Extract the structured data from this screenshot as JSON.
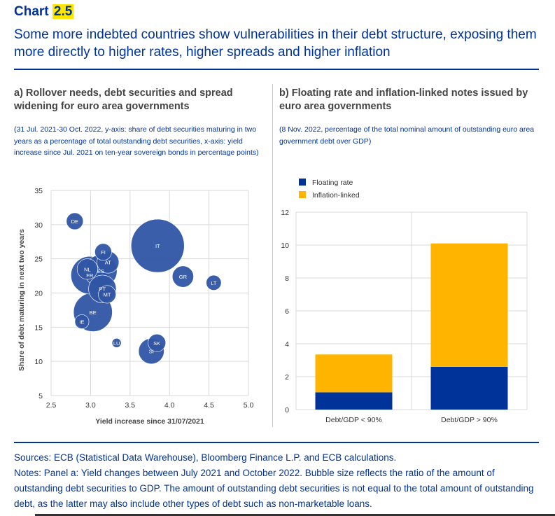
{
  "header": {
    "chart_label": "Chart",
    "chart_number": "2.5",
    "title": "Some more indebted countries show vulnerabilities in their debt structure, exposing them more directly to higher rates, higher spreads and higher inflation"
  },
  "panel_a": {
    "title": "a) Rollover needs, debt securities and spread widening for euro area governments",
    "note": "(31 Jul. 2021-30 Oct. 2022, y-axis: share of debt securities maturing in two years as a percentage of total outstanding debt securities, x-axis: yield increase since Jul. 2021 on ten-year sovereign bonds in percentage points)"
  },
  "panel_b": {
    "title": "b) Floating rate and inflation-linked notes issued by euro area governments",
    "note": "(8 Nov. 2022, percentage of the total nominal amount of outstanding euro area government debt over GDP)"
  },
  "chart_data": [
    {
      "type": "scatter",
      "xlabel": "Yield increase since 31/07/2021",
      "ylabel": "Share of debt maturing in next two years",
      "xlim": [
        2.5,
        5.0
      ],
      "ylim": [
        5,
        35
      ],
      "x_ticks": [
        "2.5",
        "3.0",
        "3.5",
        "4.0",
        "4.5",
        "5.0"
      ],
      "y_ticks": [
        "5",
        "10",
        "15",
        "20",
        "25",
        "30",
        "35"
      ],
      "grid": true,
      "bubble_color": "#2f55a4",
      "points": [
        {
          "label": "DE",
          "x": 2.8,
          "y": 30.5,
          "size": 1.0
        },
        {
          "label": "FI",
          "x": 3.16,
          "y": 26.0,
          "size": 1.0
        },
        {
          "label": "AT",
          "x": 3.22,
          "y": 24.5,
          "size": 1.7
        },
        {
          "label": "NL",
          "x": 2.96,
          "y": 23.5,
          "size": 1.5
        },
        {
          "label": "ES",
          "x": 3.13,
          "y": 23.2,
          "size": 3.7
        },
        {
          "label": "FR",
          "x": 2.99,
          "y": 22.6,
          "size": 5.0
        },
        {
          "label": "PT",
          "x": 3.15,
          "y": 20.6,
          "size": 2.7
        },
        {
          "label": "MT",
          "x": 3.21,
          "y": 19.8,
          "size": 1.1
        },
        {
          "label": "BE",
          "x": 3.03,
          "y": 17.2,
          "size": 5.3
        },
        {
          "label": "IE",
          "x": 2.89,
          "y": 15.8,
          "size": 0.7
        },
        {
          "label": "IT",
          "x": 3.85,
          "y": 26.9,
          "size": 10.0
        },
        {
          "label": "GR",
          "x": 4.17,
          "y": 22.4,
          "size": 1.6
        },
        {
          "label": "LT",
          "x": 4.56,
          "y": 21.5,
          "size": 0.8
        },
        {
          "label": "LU",
          "x": 3.33,
          "y": 12.7,
          "size": 0.3
        },
        {
          "label": "SK",
          "x": 3.84,
          "y": 12.7,
          "size": 1.1
        },
        {
          "label": "SI",
          "x": 3.77,
          "y": 11.5,
          "size": 2.3
        }
      ]
    },
    {
      "type": "bar",
      "stacked": true,
      "categories": [
        "Debt/GDP < 90%",
        "Debt/GDP > 90%"
      ],
      "ylim": [
        0,
        12
      ],
      "y_ticks": [
        "0",
        "2",
        "4",
        "6",
        "8",
        "10",
        "12"
      ],
      "grid": true,
      "legend_position": "top-left",
      "series": [
        {
          "name": "Floating rate",
          "color": "#003399",
          "values": [
            1.05,
            2.6
          ]
        },
        {
          "name": "Inflation-linked",
          "color": "#ffb400",
          "values": [
            2.3,
            7.5
          ]
        }
      ]
    }
  ],
  "footer": {
    "sources": "Sources: ECB (Statistical Data Warehouse), Bloomberg Finance L.P. and ECB calculations.",
    "notes": "Notes: Panel a: Yield changes between July 2021 and October 2022. Bubble size reflects the ratio of the amount of outstanding debt securities to GDP. The amount of outstanding debt securities is not equal to the total amount of outstanding debt, as the latter may also include other types of debt such as non-marketable loans."
  }
}
